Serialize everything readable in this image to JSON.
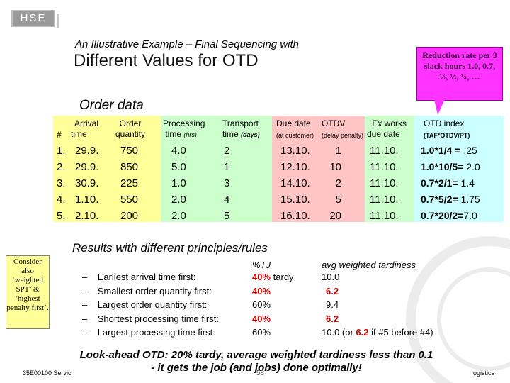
{
  "logo": {
    "text": "HSE"
  },
  "header": {
    "kicker": "An Illustrative Example – Final Sequencing with",
    "title": "Different Values for OTD"
  },
  "callout": {
    "text": "Reduction rate per 3 slack hours 1.0, 0.7, ½, ⅓, ¼, …"
  },
  "order_section": {
    "title": "Order data"
  },
  "table": {
    "headers": {
      "num": "#",
      "arrival": [
        "Arrival",
        "time"
      ],
      "quantity": [
        "Order",
        "quantity"
      ],
      "processing": [
        "Processing",
        "time",
        "(hrs)"
      ],
      "transport": [
        "Transport",
        "time",
        "(days)"
      ],
      "due": [
        "Due date",
        "(at customer)"
      ],
      "otdv": [
        "OTDV",
        "(delay penalty)"
      ],
      "ex": [
        "Ex works",
        "due date"
      ],
      "otd": [
        "OTD index",
        "(TAF*OTDV/PT)"
      ]
    },
    "rows": [
      {
        "n": "1.",
        "arrival": "29.9.",
        "qty": "750",
        "proc": "4.0",
        "trans": "2",
        "due": "13.10.",
        "otdv": "1",
        "ex": "11.10.",
        "otd_b": "1.0*1/4 = ",
        "otd_r": ".25"
      },
      {
        "n": "2.",
        "arrival": "29.9.",
        "qty": "850",
        "proc": "5.0",
        "trans": "1",
        "due": "12.10.",
        "otdv": "10",
        "ex": "11.10.",
        "otd_b": "1.0*10/5=",
        "otd_r": " 2.0"
      },
      {
        "n": "3.",
        "arrival": "30.9.",
        "qty": "225",
        "proc": "1.0",
        "trans": "3",
        "due": "14.10.",
        "otdv": "2",
        "ex": "11.10.",
        "otd_b": "0.7*2/1=",
        "otd_r": " 1.4"
      },
      {
        "n": "4.",
        "arrival": "1.10.",
        "qty": "550",
        "proc": "2.0",
        "trans": "4",
        "due": "15.10.",
        "otdv": "5",
        "ex": "11.10.",
        "otd_b": "0.7*5/2=",
        "otd_r": " 1.75"
      },
      {
        "n": "5.",
        "arrival": "2.10.",
        "qty": "200",
        "proc": "2.0",
        "trans": "5",
        "due": "16.10.",
        "otdv": "20",
        "ex": "11.10.",
        "otd_b": "0.7*20/2=",
        "otd_r": "7.0"
      }
    ]
  },
  "results": {
    "title": "Results with different principles/rules",
    "col_tj": "%TJ",
    "col_awt": "avg weighted tardiness",
    "rules": [
      {
        "label": "Earliest arrival time first:",
        "tj": "40%",
        "tj_extra": " tardy",
        "tj_red": true,
        "awt": "10.0",
        "awt_red": false
      },
      {
        "label": "Smallest order quantity first:",
        "tj": "40%",
        "tj_extra": "",
        "tj_red": true,
        "awt": "6.2",
        "awt_red": true
      },
      {
        "label": "Largest order quantity first:",
        "tj": "60%",
        "tj_extra": "",
        "tj_red": false,
        "awt": "9.4",
        "awt_red": false
      },
      {
        "label": "Shortest processing time first:",
        "tj": "40%",
        "tj_extra": "",
        "tj_red": true,
        "awt": "6.2",
        "awt_red": true
      },
      {
        "label": "Largest processing time first:",
        "tj": "60%",
        "tj_extra": "",
        "tj_red": false,
        "awt_pre": "10.0 (or ",
        "awt_mid": "6.2",
        "awt_post": " if #5 before #4)"
      }
    ]
  },
  "side_note": {
    "text": "Consider also ‘weighted SPT’ & ‘highest penalty first’."
  },
  "lookahead": {
    "line1": "Look-ahead OTD: 20% tardy, average weighted tardiness less than 0.1",
    "line2": "- it gets the job (and jobs) done optimally!"
  },
  "footer": {
    "left": "35E00100 Servic",
    "page": "58",
    "right": "ogistics"
  },
  "colors": {
    "yellow": "#ffff9a",
    "green": "#ccffcc",
    "pink": "#ffc4c4",
    "cyan": "#ccffff",
    "magenta": "#ff33ff",
    "red": "#cc0000"
  }
}
